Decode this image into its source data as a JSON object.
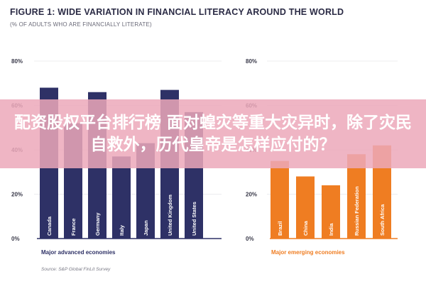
{
  "header": {
    "title": "FIGURE 1: WIDE VARIATION IN FINANCIAL LITERACY AROUND THE WORLD",
    "subtitle": "(% OF ADULTS WHO ARE FINANCIALLY LITERATE)"
  },
  "source": "Source: S&P Global FinLit Survey",
  "overlay": {
    "text": "配资股权平台排行榜 面对蝗灾等重大灾异时，除了灾民自救外，历代皇帝是怎样应付的？"
  },
  "colors": {
    "advanced": "#2e3166",
    "emerging": "#ef7d22",
    "overlay": "#eca8ba"
  },
  "chart_data": [
    {
      "type": "bar",
      "group_label": "Major advanced economies",
      "categories": [
        "Canada",
        "France",
        "Germany",
        "Italy",
        "Japan",
        "United Kingdom",
        "United States"
      ],
      "values": [
        68,
        52,
        66,
        37,
        43,
        67,
        57
      ],
      "yticks": [
        "0%",
        "20%",
        "40%",
        "60%",
        "80%"
      ],
      "ylim": [
        0,
        80
      ],
      "color": "#2e3166"
    },
    {
      "type": "bar",
      "group_label": "Major emerging economies",
      "categories": [
        "Brazil",
        "China",
        "India",
        "Russian Federation",
        "South Africa"
      ],
      "values": [
        35,
        28,
        24,
        38,
        42
      ],
      "yticks": [
        "0%",
        "20%",
        "40%",
        "60%",
        "80%"
      ],
      "ylim": [
        0,
        80
      ],
      "color": "#ef7d22"
    }
  ]
}
